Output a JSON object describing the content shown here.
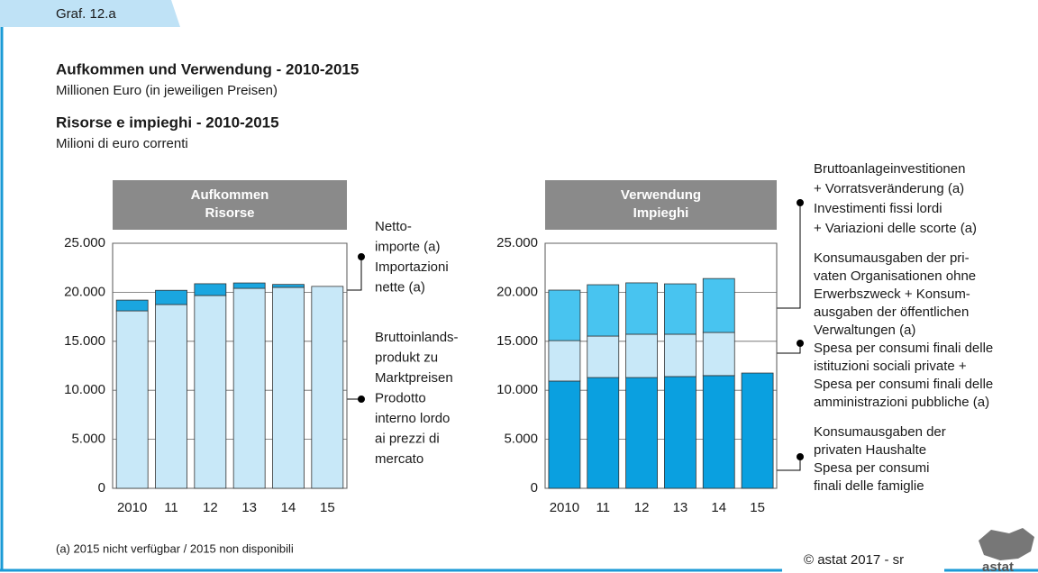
{
  "header": {
    "tab": "Graf. 12.a",
    "title_de": "Aufkommen und Verwendung - 2010-2015",
    "subtitle_de": "Millionen Euro (in jeweiligen Preisen)",
    "title_it": "Risorse e impieghi - 2010-2015",
    "subtitle_it": "Milioni di euro correnti"
  },
  "chart_data": [
    {
      "type": "bar",
      "stacked": true,
      "title": [
        "Aufkommen",
        "Risorse"
      ],
      "categories": [
        "2010",
        "11",
        "12",
        "13",
        "14",
        "15"
      ],
      "ylim": [
        0,
        25000
      ],
      "yticks": [
        0,
        {
          "value": 5000,
          "label": "5.000"
        },
        {
          "value": 10000,
          "label": "10.000"
        },
        {
          "value": 15000,
          "label": "15.000"
        },
        {
          "value": 20000,
          "label": "20.000"
        },
        {
          "value": 25000,
          "label": "25.000"
        }
      ],
      "grid": true,
      "series": [
        {
          "name": [
            "Bruttoinlands-",
            "produkt zu",
            "Marktpreisen",
            "Prodotto",
            "interno lordo",
            "ai prezzi di",
            "mercato"
          ],
          "color": "#c8e8f8",
          "values": [
            18100,
            18750,
            19670,
            20400,
            20500,
            20600
          ]
        },
        {
          "name": [
            "Netto-",
            "importe (a)",
            "Importazioni",
            "nette (a)"
          ],
          "color": "#1aa6e0",
          "values": [
            1100,
            1450,
            1200,
            550,
            300,
            null
          ]
        }
      ]
    },
    {
      "type": "bar",
      "stacked": true,
      "title": [
        "Verwendung",
        "Impieghi"
      ],
      "categories": [
        "2010",
        "11",
        "12",
        "13",
        "14",
        "15"
      ],
      "ylim": [
        0,
        25000
      ],
      "yticks": [
        0,
        {
          "value": 5000,
          "label": "5.000"
        },
        {
          "value": 10000,
          "label": "10.000"
        },
        {
          "value": 15000,
          "label": "15.000"
        },
        {
          "value": 20000,
          "label": "20.000"
        },
        {
          "value": 25000,
          "label": "25.000"
        }
      ],
      "grid": true,
      "series": [
        {
          "name": [
            "Konsumausgaben der",
            "privaten Haushalte",
            "Spesa per consumi",
            "finali delle famiglie"
          ],
          "color": "#0aa0e0",
          "values": [
            10940,
            11300,
            11300,
            11400,
            11500,
            11760
          ]
        },
        {
          "name": [
            "Konsumausgaben der pri-",
            "vaten Organisationen ohne",
            "Erwerbszweck + Konsum-",
            "ausgaben der öffentlichen",
            "Verwaltungen (a)",
            "Spesa per consumi finali delle",
            "istituzioni sociali private +",
            "Spesa per consumi finali delle",
            "amministrazioni pubbliche (a)"
          ],
          "color": "#c8e8f8",
          "values": [
            4130,
            4230,
            4420,
            4320,
            4400,
            null
          ]
        },
        {
          "name": [
            "Bruttoanlageinvestitionen",
            "+ Vorratsveränderung (a)",
            "Investimenti fissi lordi",
            "+ Variazioni delle scorte (a)"
          ],
          "color": "#48c4f0",
          "values": [
            5150,
            5240,
            5240,
            5140,
            5500,
            null
          ]
        }
      ]
    }
  ],
  "footer": {
    "note": "(a)  2015 nicht verfügbar / 2015 non disponibili",
    "copyright": "©  astat 2017 - sr",
    "logo": "astat"
  }
}
